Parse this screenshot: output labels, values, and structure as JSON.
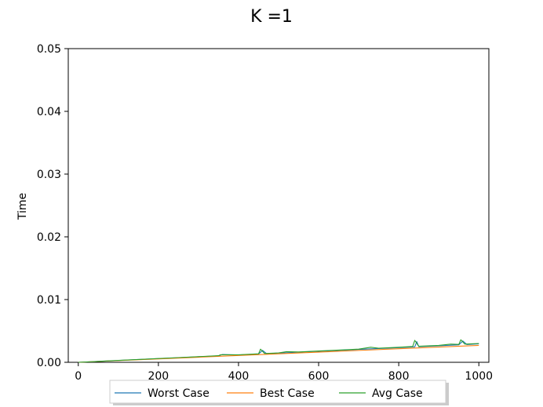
{
  "chart_data": {
    "type": "line",
    "title": "K =1",
    "xlabel": "",
    "ylabel": "Time",
    "xlim": [
      -25,
      1025
    ],
    "ylim": [
      0,
      0.05
    ],
    "xticks": [
      0,
      200,
      400,
      600,
      800,
      1000
    ],
    "xtick_labels": [
      "0",
      "200",
      "400",
      "600",
      "800",
      "1000"
    ],
    "yticks": [
      0,
      0.01,
      0.02,
      0.03,
      0.04,
      0.05
    ],
    "ytick_labels": [
      "0.00",
      "0.01",
      "0.02",
      "0.03",
      "0.04",
      "0.05"
    ],
    "grid": false,
    "legend_position": "bottom-center",
    "series": [
      {
        "name": "Worst Case",
        "color": "#1f77b4",
        "x": [
          0,
          50,
          100,
          150,
          200,
          250,
          300,
          350,
          360,
          400,
          450,
          460,
          470,
          500,
          550,
          600,
          650,
          700,
          750,
          800,
          840,
          845,
          850,
          900,
          950,
          960,
          970,
          1000
        ],
        "y": [
          0.0,
          0.00014,
          0.00029,
          0.00044,
          0.00058,
          0.00073,
          0.00088,
          0.00102,
          0.00125,
          0.00117,
          0.00132,
          0.0019,
          0.00138,
          0.00146,
          0.00161,
          0.00176,
          0.0019,
          0.00205,
          0.0022,
          0.00234,
          0.00246,
          0.0033,
          0.00249,
          0.00263,
          0.00278,
          0.0034,
          0.00284,
          0.00295
        ]
      },
      {
        "name": "Best Case",
        "color": "#ff7f0e",
        "x": [
          0,
          100,
          200,
          300,
          400,
          500,
          600,
          700,
          800,
          900,
          1000
        ],
        "y": [
          0.0,
          0.00027,
          0.00054,
          0.00081,
          0.00108,
          0.00135,
          0.00162,
          0.00189,
          0.00216,
          0.00243,
          0.0027
        ]
      },
      {
        "name": "Avg Case",
        "color": "#2ca02c",
        "x": [
          0,
          50,
          100,
          150,
          200,
          250,
          300,
          350,
          355,
          400,
          450,
          455,
          465,
          500,
          520,
          550,
          600,
          650,
          700,
          730,
          750,
          800,
          835,
          840,
          850,
          900,
          930,
          950,
          955,
          965,
          1000
        ],
        "y": [
          0.0,
          0.00015,
          0.0003,
          0.00045,
          0.0006,
          0.00075,
          0.0009,
          0.00105,
          0.0012,
          0.0012,
          0.00135,
          0.0021,
          0.0014,
          0.0015,
          0.0017,
          0.00165,
          0.0018,
          0.00195,
          0.0021,
          0.0024,
          0.00225,
          0.0024,
          0.00252,
          0.0035,
          0.00255,
          0.0027,
          0.0029,
          0.00285,
          0.0036,
          0.0029,
          0.003
        ]
      }
    ]
  }
}
